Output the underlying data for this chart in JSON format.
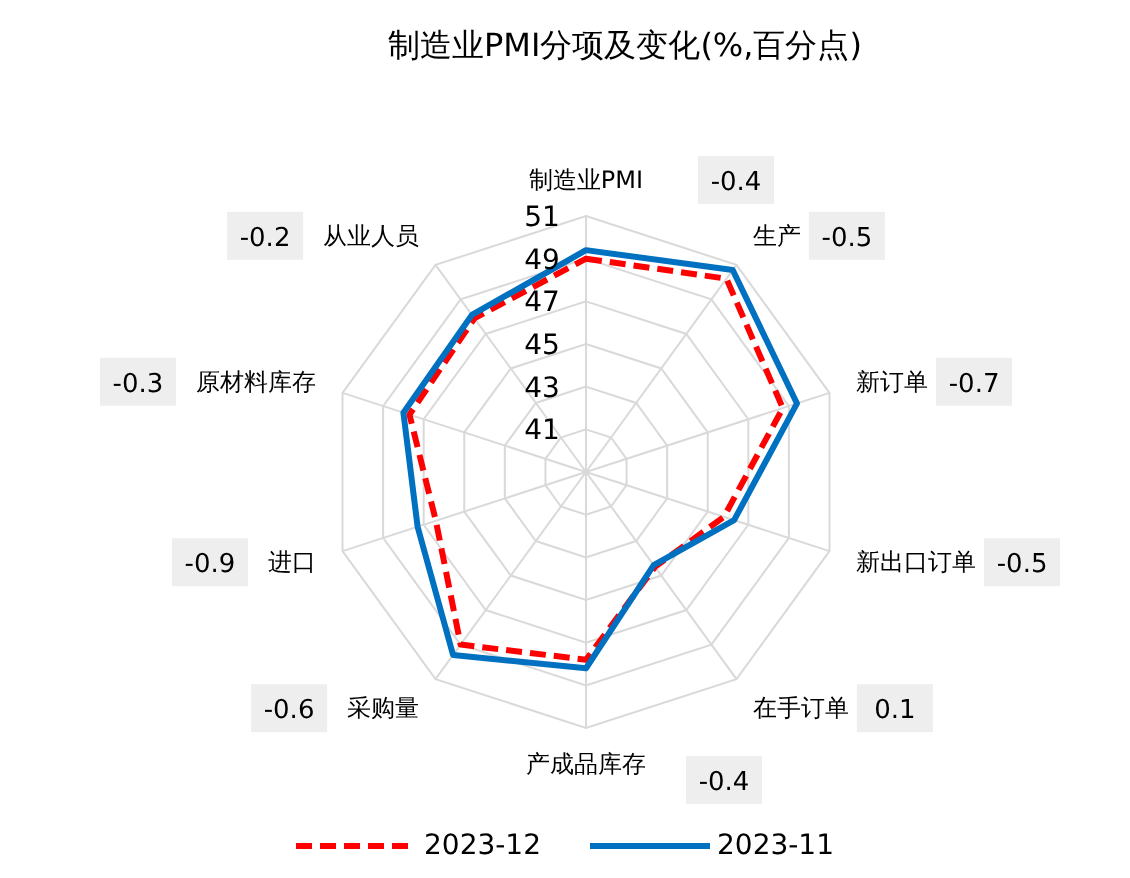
{
  "chart_data": {
    "type": "radar",
    "title": "制造业PMI分项及变化(%,百分点)",
    "categories": [
      "制造业PMI",
      "生产",
      "新订单",
      "新出口订单",
      "在手订单",
      "产成品库存",
      "采购量",
      "进口",
      "原材料库存",
      "从业人员"
    ],
    "series": [
      {
        "name": "2023-12",
        "color": "#ff0000",
        "line_style": "dashed",
        "values": [
          49.0,
          50.2,
          48.7,
          45.8,
          44.5,
          47.8,
          49.0,
          46.4,
          47.7,
          47.9
        ]
      },
      {
        "name": "2023-11",
        "color": "#0070c0",
        "line_style": "solid",
        "values": [
          49.4,
          50.7,
          49.4,
          46.3,
          44.4,
          48.2,
          49.6,
          47.3,
          48.0,
          48.1
        ]
      }
    ],
    "ylim": [
      39,
      51
    ],
    "yticks": [
      41,
      43,
      45,
      47,
      49,
      51
    ],
    "grid": true,
    "legend": "bottom",
    "marker": "none",
    "annotations": [
      "-0.4",
      "-0.5",
      "-0.7",
      "-0.5",
      "0.1",
      "-0.4",
      "-0.6",
      "-0.9",
      "-0.3",
      "-0.2"
    ]
  }
}
